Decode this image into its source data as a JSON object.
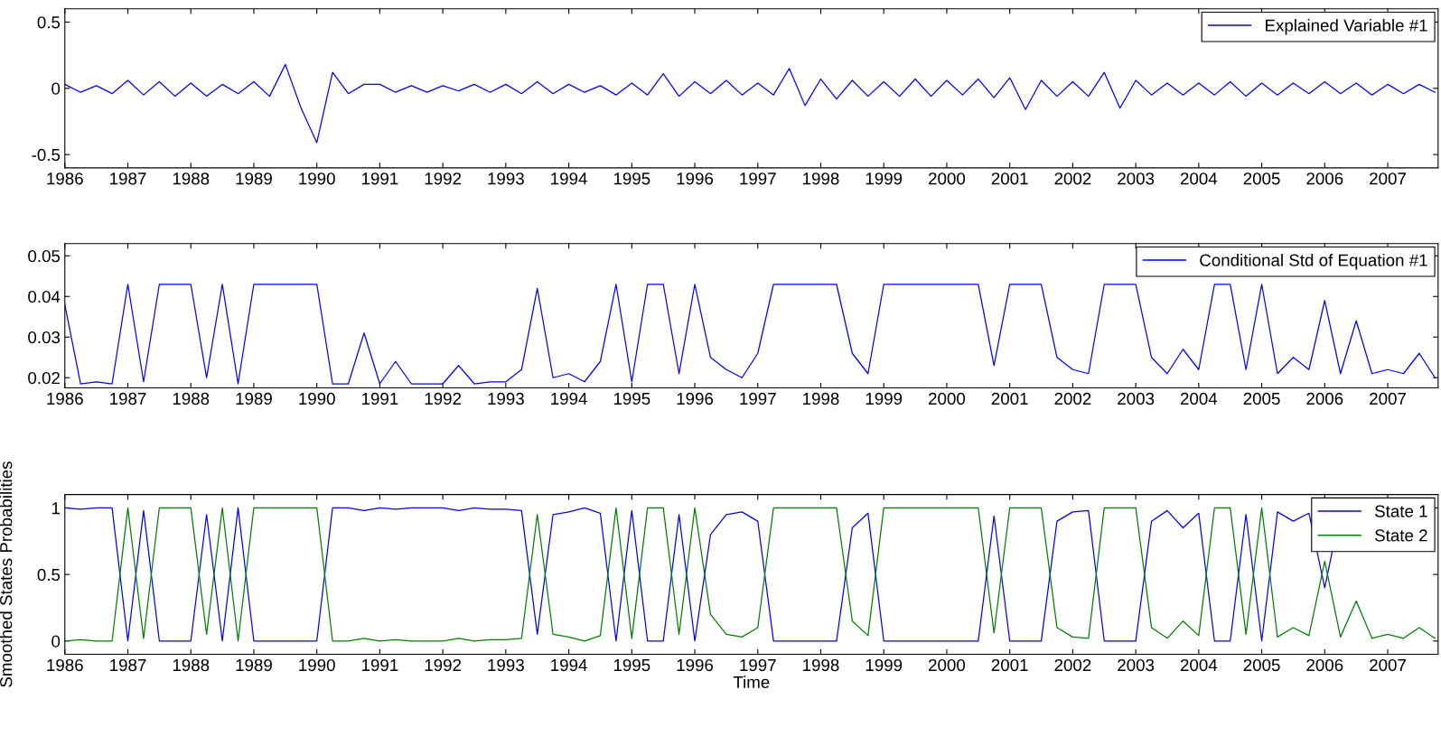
{
  "chart_data": [
    {
      "type": "line",
      "x": [
        1986,
        1986.25,
        1986.5,
        1986.75,
        1987,
        1987.25,
        1987.5,
        1987.75,
        1988,
        1988.25,
        1988.5,
        1988.75,
        1989,
        1989.25,
        1989.5,
        1989.75,
        1990,
        1990.25,
        1990.5,
        1990.75,
        1991,
        1991.25,
        1991.5,
        1991.75,
        1992,
        1992.25,
        1992.5,
        1992.75,
        1993,
        1993.25,
        1993.5,
        1993.75,
        1994,
        1994.25,
        1994.5,
        1994.75,
        1995,
        1995.25,
        1995.5,
        1995.75,
        1996,
        1996.25,
        1996.5,
        1996.75,
        1997,
        1997.25,
        1997.5,
        1997.75,
        1998,
        1998.25,
        1998.5,
        1998.75,
        1999,
        1999.25,
        1999.5,
        1999.75,
        2000,
        2000.25,
        2000.5,
        2000.75,
        2001,
        2001.25,
        2001.5,
        2001.75,
        2002,
        2002.25,
        2002.5,
        2002.75,
        2003,
        2003.25,
        2003.5,
        2003.75,
        2004,
        2004.25,
        2004.5,
        2004.75,
        2005,
        2005.25,
        2005.5,
        2005.75,
        2006,
        2006.25,
        2006.5,
        2006.75,
        2007,
        2007.25,
        2007.5,
        2007.75
      ],
      "series": [
        {
          "name": "Explained Variable #1",
          "color": "#0000ff",
          "values": [
            0.03,
            -0.03,
            0.02,
            -0.04,
            0.06,
            -0.05,
            0.05,
            -0.06,
            0.04,
            -0.06,
            0.03,
            -0.04,
            0.05,
            -0.06,
            0.18,
            -0.15,
            -0.41,
            0.12,
            -0.04,
            0.03,
            0.03,
            -0.03,
            0.02,
            -0.03,
            0.02,
            -0.02,
            0.03,
            -0.03,
            0.03,
            -0.04,
            0.05,
            -0.04,
            0.03,
            -0.03,
            0.02,
            -0.05,
            0.04,
            -0.05,
            0.11,
            -0.06,
            0.05,
            -0.04,
            0.06,
            -0.05,
            0.04,
            -0.05,
            0.15,
            -0.13,
            0.07,
            -0.08,
            0.06,
            -0.06,
            0.05,
            -0.06,
            0.07,
            -0.06,
            0.06,
            -0.05,
            0.07,
            -0.07,
            0.08,
            -0.16,
            0.06,
            -0.06,
            0.05,
            -0.06,
            0.12,
            -0.15,
            0.06,
            -0.05,
            0.04,
            -0.05,
            0.04,
            -0.05,
            0.05,
            -0.06,
            0.04,
            -0.05,
            0.04,
            -0.04,
            0.05,
            -0.04,
            0.04,
            -0.05,
            0.03,
            -0.04,
            0.03,
            -0.03
          ]
        }
      ],
      "xlim": [
        1986,
        2007.8
      ],
      "xticks": [
        1986,
        1987,
        1988,
        1989,
        1990,
        1991,
        1992,
        1993,
        1994,
        1995,
        1996,
        1997,
        1998,
        1999,
        2000,
        2001,
        2002,
        2003,
        2004,
        2005,
        2006,
        2007
      ],
      "ylim": [
        -0.6,
        0.6
      ],
      "yticks": [
        -0.5,
        0,
        0.5
      ],
      "legend": "top right"
    },
    {
      "type": "line",
      "x": [
        1986,
        1986.25,
        1986.5,
        1986.75,
        1987,
        1987.25,
        1987.5,
        1987.75,
        1988,
        1988.25,
        1988.5,
        1988.75,
        1989,
        1989.25,
        1989.5,
        1989.75,
        1990,
        1990.25,
        1990.5,
        1990.75,
        1991,
        1991.25,
        1991.5,
        1991.75,
        1992,
        1992.25,
        1992.5,
        1992.75,
        1993,
        1993.25,
        1993.5,
        1993.75,
        1994,
        1994.25,
        1994.5,
        1994.75,
        1995,
        1995.25,
        1995.5,
        1995.75,
        1996,
        1996.25,
        1996.5,
        1996.75,
        1997,
        1997.25,
        1997.5,
        1997.75,
        1998,
        1998.25,
        1998.5,
        1998.75,
        1999,
        1999.25,
        1999.5,
        1999.75,
        2000,
        2000.25,
        2000.5,
        2000.75,
        2001,
        2001.25,
        2001.5,
        2001.75,
        2002,
        2002.25,
        2002.5,
        2002.75,
        2003,
        2003.25,
        2003.5,
        2003.75,
        2004,
        2004.25,
        2004.5,
        2004.75,
        2005,
        2005.25,
        2005.5,
        2005.75,
        2006,
        2006.25,
        2006.5,
        2006.75,
        2007,
        2007.25,
        2007.5,
        2007.75
      ],
      "series": [
        {
          "name": "Conditional Std of Equation #1",
          "color": "#0000ff",
          "values": [
            0.038,
            0.0185,
            0.019,
            0.0185,
            0.043,
            0.019,
            0.043,
            0.043,
            0.043,
            0.02,
            0.043,
            0.0185,
            0.043,
            0.043,
            0.043,
            0.043,
            0.043,
            0.0185,
            0.0185,
            0.031,
            0.0185,
            0.024,
            0.0185,
            0.0185,
            0.0185,
            0.023,
            0.0185,
            0.019,
            0.019,
            0.022,
            0.042,
            0.02,
            0.021,
            0.019,
            0.024,
            0.043,
            0.019,
            0.043,
            0.043,
            0.021,
            0.043,
            0.025,
            0.022,
            0.02,
            0.026,
            0.043,
            0.043,
            0.043,
            0.043,
            0.043,
            0.026,
            0.021,
            0.043,
            0.043,
            0.043,
            0.043,
            0.043,
            0.043,
            0.043,
            0.023,
            0.043,
            0.043,
            0.043,
            0.025,
            0.022,
            0.021,
            0.043,
            0.043,
            0.043,
            0.025,
            0.021,
            0.027,
            0.022,
            0.043,
            0.043,
            0.022,
            0.043,
            0.021,
            0.025,
            0.022,
            0.039,
            0.021,
            0.034,
            0.021,
            0.022,
            0.021,
            0.026,
            0.02
          ]
        }
      ],
      "xlim": [
        1986,
        2007.8
      ],
      "xticks": [
        1986,
        1987,
        1988,
        1989,
        1990,
        1991,
        1992,
        1993,
        1994,
        1995,
        1996,
        1997,
        1998,
        1999,
        2000,
        2001,
        2002,
        2003,
        2004,
        2005,
        2006,
        2007
      ],
      "ylim": [
        0.0175,
        0.053
      ],
      "yticks": [
        0.02,
        0.03,
        0.04,
        0.05
      ],
      "legend": "top right"
    },
    {
      "type": "line",
      "xlabel": "Time",
      "ylabel": "Smoothed States Probabilities",
      "x": [
        1986,
        1986.25,
        1986.5,
        1986.75,
        1987,
        1987.25,
        1987.5,
        1987.75,
        1988,
        1988.25,
        1988.5,
        1988.75,
        1989,
        1989.25,
        1989.5,
        1989.75,
        1990,
        1990.25,
        1990.5,
        1990.75,
        1991,
        1991.25,
        1991.5,
        1991.75,
        1992,
        1992.25,
        1992.5,
        1992.75,
        1993,
        1993.25,
        1993.5,
        1993.75,
        1994,
        1994.25,
        1994.5,
        1994.75,
        1995,
        1995.25,
        1995.5,
        1995.75,
        1996,
        1996.25,
        1996.5,
        1996.75,
        1997,
        1997.25,
        1997.5,
        1997.75,
        1998,
        1998.25,
        1998.5,
        1998.75,
        1999,
        1999.25,
        1999.5,
        1999.75,
        2000,
        2000.25,
        2000.5,
        2000.75,
        2001,
        2001.25,
        2001.5,
        2001.75,
        2002,
        2002.25,
        2002.5,
        2002.75,
        2003,
        2003.25,
        2003.5,
        2003.75,
        2004,
        2004.25,
        2004.5,
        2004.75,
        2005,
        2005.25,
        2005.5,
        2005.75,
        2006,
        2006.25,
        2006.5,
        2006.75,
        2007,
        2007.25,
        2007.5,
        2007.75
      ],
      "series": [
        {
          "name": "State 1",
          "color": "#0000ff",
          "values": [
            1.0,
            0.99,
            1.0,
            1.0,
            0.0,
            0.98,
            0.0,
            0.0,
            0.0,
            0.95,
            0.0,
            1.0,
            0.0,
            0.0,
            0.0,
            0.0,
            0.0,
            1.0,
            1.0,
            0.98,
            1.0,
            0.99,
            1.0,
            1.0,
            1.0,
            0.98,
            1.0,
            0.99,
            0.99,
            0.98,
            0.05,
            0.95,
            0.97,
            1.0,
            0.96,
            0.0,
            0.98,
            0.0,
            0.0,
            0.95,
            0.0,
            0.8,
            0.95,
            0.97,
            0.9,
            0.0,
            0.0,
            0.0,
            0.0,
            0.0,
            0.85,
            0.96,
            0.0,
            0.0,
            0.0,
            0.0,
            0.0,
            0.0,
            0.0,
            0.94,
            0.0,
            0.0,
            0.0,
            0.9,
            0.97,
            0.98,
            0.0,
            0.0,
            0.0,
            0.9,
            0.98,
            0.85,
            0.96,
            0.0,
            0.0,
            0.95,
            0.0,
            0.97,
            0.9,
            0.96,
            0.4,
            0.97,
            null,
            null,
            null,
            null,
            null,
            null
          ]
        },
        {
          "name": "State 2",
          "color": "#008000",
          "values": [
            0.0,
            0.01,
            0.0,
            0.0,
            1.0,
            0.02,
            1.0,
            1.0,
            1.0,
            0.05,
            1.0,
            0.0,
            1.0,
            1.0,
            1.0,
            1.0,
            1.0,
            0.0,
            0.0,
            0.02,
            0.0,
            0.01,
            0.0,
            0.0,
            0.0,
            0.02,
            0.0,
            0.01,
            0.01,
            0.02,
            0.95,
            0.05,
            0.03,
            0.0,
            0.04,
            1.0,
            0.02,
            1.0,
            1.0,
            0.05,
            1.0,
            0.2,
            0.05,
            0.03,
            0.1,
            1.0,
            1.0,
            1.0,
            1.0,
            1.0,
            0.15,
            0.04,
            1.0,
            1.0,
            1.0,
            1.0,
            1.0,
            1.0,
            1.0,
            0.06,
            1.0,
            1.0,
            1.0,
            0.1,
            0.03,
            0.02,
            1.0,
            1.0,
            1.0,
            0.1,
            0.02,
            0.15,
            0.04,
            1.0,
            1.0,
            0.05,
            1.0,
            0.03,
            0.1,
            0.04,
            0.6,
            0.03,
            0.3,
            0.02,
            0.05,
            0.02,
            0.1,
            0.02
          ]
        }
      ],
      "xlim": [
        1986,
        2007.8
      ],
      "xticks": [
        1986,
        1987,
        1988,
        1989,
        1990,
        1991,
        1992,
        1993,
        1994,
        1995,
        1996,
        1997,
        1998,
        1999,
        2000,
        2001,
        2002,
        2003,
        2004,
        2005,
        2006,
        2007
      ],
      "ylim": [
        -0.1,
        1.1
      ],
      "yticks": [
        0,
        0.5,
        1
      ],
      "legend": "top right"
    }
  ]
}
